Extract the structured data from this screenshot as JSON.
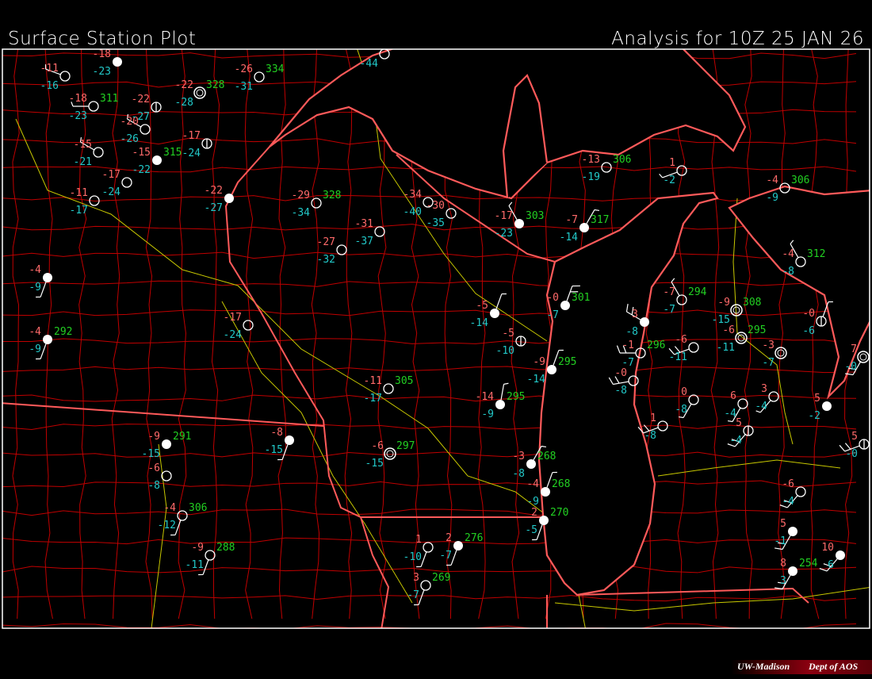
{
  "header": {
    "title": "Surface Station Plot",
    "analysis": "Analysis for 10Z 25 JAN 26"
  },
  "footer": {
    "institution": "UW-Madison",
    "department": "Dept of AOS"
  },
  "colors": {
    "background": "#000000",
    "frame": "#ffffff",
    "coastline_state": "#ff5a5a",
    "county": "#c00000",
    "highway": "#c8c800",
    "temperature": "#ff6a6a",
    "dewpoint": "#22c8c8",
    "pressure": "#22d022",
    "station": "#ffffff"
  },
  "stations": [
    {
      "temp": "-11",
      "dew": "-16",
      "pres": "",
      "cover": "clear",
      "wdir": 290,
      "wspd": 5
    },
    {
      "temp": "-18",
      "dew": "-23",
      "pres": "",
      "cover": "overcast",
      "wdir": 0,
      "wspd": 0
    },
    {
      "temp": "-18",
      "dew": "-23",
      "pres": "311",
      "cover": "clear",
      "wdir": 270,
      "wspd": 5
    },
    {
      "temp": "-20",
      "dew": "-26",
      "pres": "",
      "cover": "clear",
      "wdir": 300,
      "wspd": 5
    },
    {
      "temp": "-22",
      "dew": "-27",
      "pres": "",
      "cover": "partly",
      "wdir": 0,
      "wspd": 0
    },
    {
      "temp": "-22",
      "dew": "-28",
      "pres": "328",
      "cover": "obscured",
      "wdir": 0,
      "wspd": 0
    },
    {
      "temp": "-26",
      "dew": "-31",
      "pres": "334",
      "cover": "clear",
      "wdir": 0,
      "wspd": 0
    },
    {
      "temp": "-15",
      "dew": "-21",
      "pres": "",
      "cover": "clear",
      "wdir": 300,
      "wspd": 5
    },
    {
      "temp": "-29",
      "dew": "-34",
      "pres": "328",
      "cover": "clear",
      "wdir": 0,
      "wspd": 0
    },
    {
      "temp": "-17",
      "dew": "-24",
      "pres": "",
      "cover": "clear",
      "wdir": 0,
      "wspd": 0
    },
    {
      "temp": "-15",
      "dew": "-22",
      "pres": "315",
      "cover": "overcast",
      "wdir": 0,
      "wspd": 0
    },
    {
      "temp": "-17",
      "dew": "-24",
      "pres": "",
      "cover": "partly",
      "wdir": 0,
      "wspd": 0
    },
    {
      "temp": "-22",
      "dew": "-27",
      "pres": "",
      "cover": "overcast",
      "wdir": 0,
      "wspd": 0
    },
    {
      "temp": "-11",
      "dew": "-17",
      "pres": "",
      "cover": "clear",
      "wdir": 0,
      "wspd": 0
    },
    {
      "temp": "-4",
      "dew": "-9",
      "pres": "",
      "cover": "overcast",
      "wdir": 200,
      "wspd": 5
    },
    {
      "temp": "-4",
      "dew": "-9",
      "pres": "292",
      "cover": "overcast",
      "wdir": 200,
      "wspd": 5
    },
    {
      "temp": "-17",
      "dew": "-24",
      "pres": "",
      "cover": "clear",
      "wdir": 0,
      "wspd": 0
    },
    {
      "temp": "-27",
      "dew": "-32",
      "pres": "",
      "cover": "clear",
      "wdir": 0,
      "wspd": 0
    },
    {
      "temp": "-31",
      "dew": "-37",
      "pres": "",
      "cover": "clear",
      "wdir": 0,
      "wspd": 0
    },
    {
      "temp": "-34",
      "dew": "-40",
      "pres": "",
      "cover": "clear",
      "wdir": 0,
      "wspd": 0
    },
    {
      "temp": "-30",
      "dew": "-35",
      "pres": "",
      "cover": "clear",
      "wdir": 0,
      "wspd": 0
    },
    {
      "temp": "-17",
      "dew": "-23",
      "pres": "303",
      "cover": "overcast",
      "wdir": 330,
      "wspd": 5
    },
    {
      "temp": "-7",
      "dew": "-14",
      "pres": "317",
      "cover": "overcast",
      "wdir": 30,
      "wspd": 5
    },
    {
      "temp": "-0",
      "dew": "-7",
      "pres": "301",
      "cover": "overcast",
      "wdir": 20,
      "wspd": 10
    },
    {
      "temp": "-5",
      "dew": "-14",
      "pres": "",
      "cover": "overcast",
      "wdir": 20,
      "wspd": 5
    },
    {
      "temp": "-5",
      "dew": "-10",
      "pres": "",
      "cover": "partly",
      "wdir": 0,
      "wspd": 0
    },
    {
      "temp": "-9",
      "dew": "-14",
      "pres": "295",
      "cover": "overcast",
      "wdir": 20,
      "wspd": 5
    },
    {
      "temp": "-14",
      "dew": "-9",
      "pres": "295",
      "cover": "overcast",
      "wdir": 10,
      "wspd": 5
    },
    {
      "temp": "3",
      "dew": "-8",
      "pres": "",
      "cover": "overcast",
      "wdir": 300,
      "wspd": 10
    },
    {
      "temp": "-1",
      "dew": "-7",
      "pres": "296",
      "cover": "clear",
      "wdir": 270,
      "wspd": 10
    },
    {
      "temp": "-7",
      "dew": "-7",
      "pres": "294",
      "cover": "clear",
      "wdir": 330,
      "wspd": 5
    },
    {
      "temp": "-9",
      "dew": "-15",
      "pres": "308",
      "cover": "obscured",
      "wdir": 0,
      "wspd": 0
    },
    {
      "temp": "-6",
      "dew": "-11",
      "pres": "295",
      "cover": "obscured",
      "wdir": 0,
      "wspd": 0
    },
    {
      "temp": "-3",
      "dew": "-7",
      "pres": "",
      "cover": "obscured",
      "wdir": 0,
      "wspd": 0
    },
    {
      "temp": "-0",
      "dew": "-6",
      "pres": "",
      "cover": "partly",
      "wdir": 20,
      "wspd": 5
    },
    {
      "temp": "-6",
      "dew": "-11",
      "pres": "",
      "cover": "clear",
      "wdir": 250,
      "wspd": 10
    },
    {
      "temp": "-0",
      "dew": "-8",
      "pres": "",
      "cover": "clear",
      "wdir": 260,
      "wspd": 10
    },
    {
      "temp": "0",
      "dew": "-8",
      "pres": "",
      "cover": "clear",
      "wdir": 210,
      "wspd": 5
    },
    {
      "temp": "5",
      "dew": "-4",
      "pres": "",
      "cover": "partly",
      "wdir": 220,
      "wspd": 10
    },
    {
      "temp": "6",
      "dew": "-4",
      "pres": "",
      "cover": "clear",
      "wdir": 210,
      "wspd": 5
    },
    {
      "temp": "3",
      "dew": "-4",
      "pres": "",
      "cover": "clear",
      "wdir": 220,
      "wspd": 5
    },
    {
      "temp": "1",
      "dew": "-8",
      "pres": "",
      "cover": "clear",
      "wdir": 250,
      "wspd": 10
    },
    {
      "temp": "7",
      "dew": "-0",
      "pres": "",
      "cover": "obscured",
      "wdir": 210,
      "wspd": 10
    },
    {
      "temp": "5",
      "dew": "-2",
      "pres": "",
      "cover": "overcast",
      "wdir": 0,
      "wspd": 0
    },
    {
      "temp": "5",
      "dew": "-0",
      "pres": "",
      "cover": "partly",
      "wdir": 250,
      "wspd": 10
    },
    {
      "temp": "-3",
      "dew": "-8",
      "pres": "268",
      "cover": "overcast",
      "wdir": 30,
      "wspd": 5
    },
    {
      "temp": "-4",
      "dew": "-9",
      "pres": "268",
      "cover": "overcast",
      "wdir": 20,
      "wspd": 5
    },
    {
      "temp": "2",
      "dew": "-5",
      "pres": "270",
      "cover": "overcast",
      "wdir": 200,
      "wspd": 5
    },
    {
      "temp": "1",
      "dew": "-10",
      "pres": "",
      "cover": "clear",
      "wdir": 200,
      "wspd": 5
    },
    {
      "temp": "2",
      "dew": "-7",
      "pres": "276",
      "cover": "overcast",
      "wdir": 200,
      "wspd": 5
    },
    {
      "temp": "3",
      "dew": "-7",
      "pres": "269",
      "cover": "clear",
      "wdir": 200,
      "wspd": 5
    },
    {
      "temp": "-13",
      "dew": "-19",
      "pres": "306",
      "cover": "clear",
      "wdir": 0,
      "wspd": 0
    },
    {
      "temp": "1",
      "dew": "-2",
      "pres": "",
      "cover": "clear",
      "wdir": 250,
      "wspd": 5
    },
    {
      "temp": "-4",
      "dew": "-8",
      "pres": "312",
      "cover": "clear",
      "wdir": 330,
      "wspd": 5
    },
    {
      "temp": "-11",
      "dew": "-17",
      "pres": "305",
      "cover": "clear",
      "wdir": 0,
      "wspd": 0
    },
    {
      "temp": "-6",
      "dew": "-15",
      "pres": "297",
      "cover": "obscured",
      "wdir": 0,
      "wspd": 0
    },
    {
      "temp": "-8",
      "dew": "-15",
      "pres": "",
      "cover": "overcast",
      "wdir": 200,
      "wspd": 5
    },
    {
      "temp": "-6",
      "dew": "-8",
      "pres": "",
      "cover": "clear",
      "wdir": 0,
      "wspd": 0
    },
    {
      "temp": "-9",
      "dew": "-11",
      "pres": "288",
      "cover": "clear",
      "wdir": 200,
      "wspd": 5
    },
    {
      "temp": "-9",
      "dew": "-15",
      "pres": "291",
      "cover": "overcast",
      "wdir": 0,
      "wspd": 0
    },
    {
      "temp": "-4",
      "dew": "-12",
      "pres": "306",
      "cover": "clear",
      "wdir": 200,
      "wspd": 5
    },
    {
      "temp": "-6",
      "dew": "-4",
      "pres": "",
      "cover": "clear",
      "wdir": 220,
      "wspd": 10
    },
    {
      "temp": "5",
      "dew": "-1",
      "pres": "",
      "cover": "overcast",
      "wdir": 210,
      "wspd": 10
    },
    {
      "temp": "8",
      "dew": "3",
      "pres": "254",
      "cover": "overcast",
      "wdir": 210,
      "wspd": 10
    },
    {
      "temp": "10",
      "dew": "6",
      "pres": "",
      "cover": "overcast",
      "wdir": 220,
      "wspd": 10
    },
    {
      "temp": "-4",
      "dew": "-44",
      "pres": "",
      "cover": "clear",
      "wdir": 0,
      "wspd": 0
    },
    {
      "temp": "-4",
      "dew": "-9",
      "pres": "306",
      "cover": "clear",
      "wdir": 0,
      "wspd": 0
    }
  ]
}
